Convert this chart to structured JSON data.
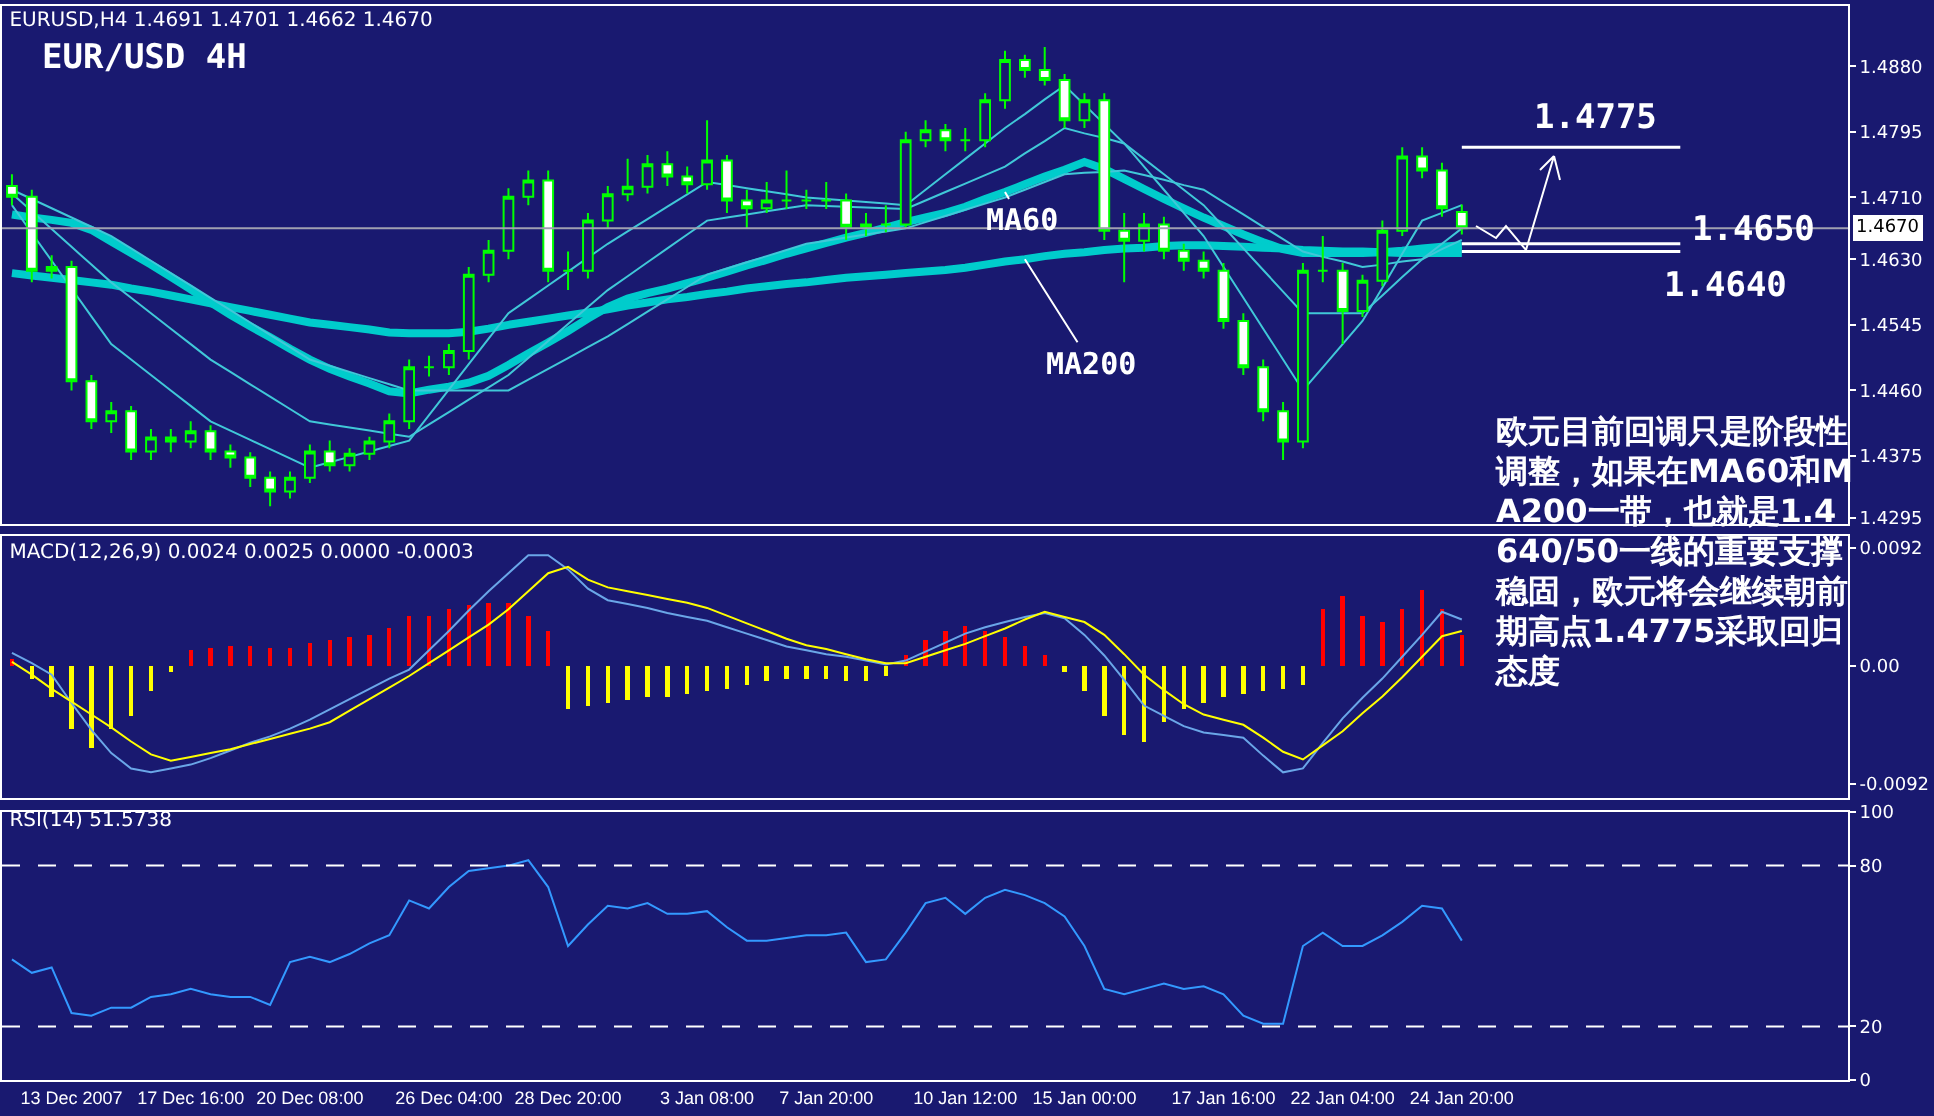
{
  "chart_data": [
    {
      "type": "candlestick",
      "title": "EURUSD,H4 1.4691 1.4701 1.4662 1.4670",
      "tick_labels": "y",
      "categories": [
        null,
        null,
        null,
        null,
        null,
        null,
        null,
        null,
        null,
        null,
        null,
        null,
        null,
        null,
        null,
        null,
        null,
        null,
        null,
        null,
        null,
        null,
        null,
        null,
        null,
        null,
        null,
        null,
        null,
        null,
        null,
        null,
        null,
        null,
        null,
        null,
        null,
        null,
        null,
        null,
        null,
        null,
        null,
        null,
        null,
        null,
        null,
        null,
        null,
        null,
        null,
        null,
        null,
        null,
        null,
        null,
        null,
        null,
        null,
        null,
        null,
        null,
        null,
        null,
        null,
        null,
        null,
        null,
        null,
        null,
        null,
        null,
        null,
        null
      ],
      "ohlc": [
        [
          1.4725,
          1.474,
          1.47,
          1.4711
        ],
        [
          1.4711,
          1.472,
          1.46,
          1.4615
        ],
        [
          1.4615,
          1.4635,
          1.4605,
          1.462
        ],
        [
          1.462,
          1.4628,
          1.446,
          1.4472
        ],
        [
          1.4472,
          1.448,
          1.441,
          1.442
        ],
        [
          1.442,
          1.4445,
          1.4405,
          1.4433
        ],
        [
          1.4433,
          1.444,
          1.437,
          1.4381
        ],
        [
          1.4381,
          1.441,
          1.437,
          1.4399
        ],
        [
          1.4399,
          1.441,
          1.438,
          1.4394
        ],
        [
          1.4394,
          1.442,
          1.4385,
          1.4407
        ],
        [
          1.4407,
          1.4415,
          1.437,
          1.4381
        ],
        [
          1.4381,
          1.439,
          1.436,
          1.4373
        ],
        [
          1.4373,
          1.438,
          1.4335,
          1.4347
        ],
        [
          1.4347,
          1.4355,
          1.431,
          1.4329
        ],
        [
          1.4329,
          1.4355,
          1.432,
          1.4347
        ],
        [
          1.4347,
          1.439,
          1.434,
          1.4381
        ],
        [
          1.4381,
          1.4395,
          1.4355,
          1.4363
        ],
        [
          1.4363,
          1.4385,
          1.4355,
          1.4378
        ],
        [
          1.4378,
          1.44,
          1.437,
          1.4394
        ],
        [
          1.4394,
          1.443,
          1.4385,
          1.442
        ],
        [
          1.442,
          1.45,
          1.441,
          1.449
        ],
        [
          1.449,
          1.4505,
          1.4478,
          1.449
        ],
        [
          1.449,
          1.452,
          1.448,
          1.4511
        ],
        [
          1.4511,
          1.462,
          1.45,
          1.461
        ],
        [
          1.461,
          1.4655,
          1.46,
          1.4641
        ],
        [
          1.4641,
          1.4722,
          1.463,
          1.4711
        ],
        [
          1.4711,
          1.4745,
          1.47,
          1.4732
        ],
        [
          1.4732,
          1.4745,
          1.46,
          1.4615
        ],
        [
          1.4615,
          1.464,
          1.459,
          1.4615
        ],
        [
          1.4615,
          1.469,
          1.4605,
          1.468
        ],
        [
          1.468,
          1.4725,
          1.467,
          1.4714
        ],
        [
          1.4714,
          1.476,
          1.4705,
          1.4724
        ],
        [
          1.4724,
          1.4765,
          1.4715,
          1.4753
        ],
        [
          1.4753,
          1.477,
          1.4725,
          1.4737
        ],
        [
          1.4737,
          1.475,
          1.4715,
          1.4727
        ],
        [
          1.4727,
          1.481,
          1.472,
          1.4758
        ],
        [
          1.4758,
          1.4765,
          1.469,
          1.4706
        ],
        [
          1.4706,
          1.472,
          1.467,
          1.4696
        ],
        [
          1.4696,
          1.473,
          1.469,
          1.4706
        ],
        [
          1.4706,
          1.4745,
          1.4695,
          1.4706
        ],
        [
          1.4706,
          1.472,
          1.4695,
          1.4706
        ],
        [
          1.4706,
          1.473,
          1.4695,
          1.4706
        ],
        [
          1.4706,
          1.4715,
          1.4655,
          1.4672
        ],
        [
          1.4672,
          1.469,
          1.466,
          1.4675
        ],
        [
          1.4675,
          1.47,
          1.4665,
          1.4675
        ],
        [
          1.4675,
          1.4795,
          1.467,
          1.4784
        ],
        [
          1.4784,
          1.481,
          1.4775,
          1.4797
        ],
        [
          1.4797,
          1.4805,
          1.477,
          1.4784
        ],
        [
          1.4784,
          1.48,
          1.477,
          1.4784
        ],
        [
          1.4784,
          1.4845,
          1.4775,
          1.4836
        ],
        [
          1.4836,
          1.49,
          1.4825,
          1.4888
        ],
        [
          1.4888,
          1.4895,
          1.4865,
          1.4875
        ],
        [
          1.4875,
          1.4905,
          1.4855,
          1.4862
        ],
        [
          1.4862,
          1.487,
          1.48,
          1.481
        ],
        [
          1.481,
          1.4845,
          1.48,
          1.4836
        ],
        [
          1.4836,
          1.4845,
          1.4655,
          1.4667
        ],
        [
          1.4667,
          1.469,
          1.46,
          1.4654
        ],
        [
          1.4654,
          1.469,
          1.464,
          1.4675
        ],
        [
          1.4675,
          1.4685,
          1.463,
          1.4641
        ],
        [
          1.4641,
          1.465,
          1.4615,
          1.4628
        ],
        [
          1.4628,
          1.464,
          1.4605,
          1.4615
        ],
        [
          1.4615,
          1.4625,
          1.454,
          1.455
        ],
        [
          1.455,
          1.456,
          1.448,
          1.449
        ],
        [
          1.449,
          1.45,
          1.442,
          1.4433
        ],
        [
          1.4433,
          1.4445,
          1.437,
          1.4394
        ],
        [
          1.4394,
          1.4625,
          1.4385,
          1.4615
        ],
        [
          1.4615,
          1.466,
          1.46,
          1.4615
        ],
        [
          1.4615,
          1.4625,
          1.452,
          1.4563
        ],
        [
          1.4563,
          1.461,
          1.4555,
          1.4602
        ],
        [
          1.4602,
          1.468,
          1.4595,
          1.4667
        ],
        [
          1.4667,
          1.4775,
          1.466,
          1.4763
        ],
        [
          1.4763,
          1.4775,
          1.4735,
          1.4745
        ],
        [
          1.4745,
          1.4755,
          1.4685,
          1.4696
        ],
        [
          1.4691,
          1.4701,
          1.4662,
          1.467
        ]
      ],
      "series": [
        {
          "type": "line",
          "name": "MA60",
          "color": "#00cccc",
          "values": [
            1.4688,
            1.4684,
            1.4681,
            1.4677,
            1.4668,
            1.4653,
            1.4638,
            1.4623,
            1.4607,
            1.4591,
            1.4574,
            1.4558,
            1.4543,
            1.4529,
            1.4514,
            1.45,
            1.4488,
            1.4478,
            1.4469,
            1.4459,
            1.4456,
            1.4461,
            1.4465,
            1.447,
            1.4479,
            1.4493,
            1.4508,
            1.4522,
            1.4537,
            1.4553,
            1.4568,
            1.4579,
            1.4586,
            1.4592,
            1.4599,
            1.4606,
            1.4614,
            1.4622,
            1.4629,
            1.4637,
            1.4644,
            1.4651,
            1.4658,
            1.4664,
            1.4671,
            1.4678,
            1.4684,
            1.469,
            1.4698,
            1.4708,
            1.4717,
            1.4727,
            1.4737,
            1.4746,
            1.4756,
            1.4747,
            1.4734,
            1.4721,
            1.4708,
            1.4696,
            1.4684,
            1.4673,
            1.4662,
            1.4652,
            1.4643,
            1.4638,
            1.4638,
            1.4638,
            1.4638,
            1.4639,
            1.4641,
            1.4644,
            1.4646,
            1.4648
          ]
        },
        {
          "type": "line",
          "name": "MA200",
          "color": "#00cccc",
          "values": [
            1.4612,
            1.4609,
            1.4606,
            1.4603,
            1.46,
            1.4597,
            1.4592,
            1.4588,
            1.4583,
            1.4578,
            1.4573,
            1.4568,
            1.4563,
            1.4558,
            1.4553,
            1.4548,
            1.4545,
            1.4542,
            1.4539,
            1.4535,
            1.4534,
            1.4534,
            1.4534,
            1.4536,
            1.454,
            1.4545,
            1.4549,
            1.4553,
            1.4557,
            1.4561,
            1.4565,
            1.457,
            1.4574,
            1.4578,
            1.4581,
            1.4585,
            1.4588,
            1.4592,
            1.4595,
            1.4598,
            1.46,
            1.4603,
            1.4606,
            1.4608,
            1.461,
            1.4612,
            1.4614,
            1.4616,
            1.4619,
            1.4623,
            1.4627,
            1.463,
            1.4634,
            1.4637,
            1.4639,
            1.4642,
            1.4644,
            1.4645,
            1.4647,
            1.4648,
            1.4648,
            1.4647,
            1.4646,
            1.4645,
            1.4644,
            1.4642,
            1.4641,
            1.464,
            1.464,
            1.4639,
            1.4638,
            1.4638,
            1.4638,
            1.4638
          ]
        },
        {
          "type": "line",
          "color": "#40c8d8",
          "values": [
            1.47,
            1.4664,
            1.4628,
            1.4592,
            1.4556,
            1.452,
            1.45,
            1.448,
            1.446,
            1.444,
            1.442,
            1.4408,
            1.4396,
            1.4384,
            1.4372,
            1.436,
            1.4367,
            1.4374,
            1.4381,
            1.4388,
            1.4395,
            1.4428,
            1.4461,
            1.4494,
            1.4527,
            1.456,
            1.4578,
            1.4596,
            1.4614,
            1.4632,
            1.465,
            1.4666,
            1.4682,
            1.4698,
            1.4714,
            1.473,
            1.4726,
            1.4722,
            1.4718,
            1.4714,
            1.471,
            1.4708,
            1.4706,
            1.4704,
            1.4702,
            1.47,
            1.472,
            1.474,
            1.476,
            1.478,
            1.48,
            1.4818,
            1.4837,
            1.4855,
            1.483,
            1.4805,
            1.478,
            1.475,
            1.472,
            1.469,
            1.466,
            1.462,
            1.458,
            1.454,
            1.45,
            1.446,
            1.449,
            1.452,
            1.455,
            1.4593,
            1.4637,
            1.468,
            1.469,
            1.47
          ]
        },
        {
          "type": "line",
          "color": "#40c8d8",
          "values": [
            1.4715,
            1.4692,
            1.4669,
            1.4646,
            1.4623,
            1.46,
            1.458,
            1.456,
            1.454,
            1.452,
            1.45,
            1.4484,
            1.4468,
            1.4452,
            1.4436,
            1.442,
            1.4416,
            1.4412,
            1.4408,
            1.4404,
            1.44,
            1.4416,
            1.4432,
            1.4448,
            1.4464,
            1.448,
            1.4502,
            1.4524,
            1.4546,
            1.4568,
            1.459,
            1.4608,
            1.4626,
            1.4644,
            1.4662,
            1.468,
            1.4684,
            1.4688,
            1.4692,
            1.4696,
            1.47,
            1.4699,
            1.4698,
            1.4697,
            1.4696,
            1.4695,
            1.4706,
            1.4717,
            1.4728,
            1.4739,
            1.475,
            1.4767,
            1.4783,
            1.48,
            1.4793,
            1.4787,
            1.478,
            1.476,
            1.474,
            1.472,
            1.47,
            1.4672,
            1.4644,
            1.4616,
            1.4588,
            1.456,
            1.456,
            1.456,
            1.456,
            1.4583,
            1.4607,
            1.463,
            1.465,
            1.467
          ]
        },
        {
          "type": "line",
          "color": "#40c8d8",
          "values": [
            1.472,
            1.4708,
            1.4696,
            1.4684,
            1.4672,
            1.466,
            1.4644,
            1.4628,
            1.4612,
            1.4596,
            1.458,
            1.4564,
            1.4548,
            1.4532,
            1.4516,
            1.45,
            1.4492,
            1.4484,
            1.4476,
            1.4468,
            1.446,
            1.446,
            1.446,
            1.446,
            1.446,
            1.446,
            1.4474,
            1.4488,
            1.4502,
            1.4516,
            1.453,
            1.4546,
            1.4562,
            1.4578,
            1.4594,
            1.461,
            1.4618,
            1.4626,
            1.4634,
            1.4642,
            1.465,
            1.4654,
            1.4658,
            1.4662,
            1.4666,
            1.467,
            1.4678,
            1.4686,
            1.4694,
            1.4702,
            1.471,
            1.472,
            1.473,
            1.474,
            1.4742,
            1.4743,
            1.4745,
            1.4739,
            1.4733,
            1.4726,
            1.472,
            1.4704,
            1.4688,
            1.4672,
            1.4656,
            1.464,
            1.4633,
            1.4627,
            1.462,
            1.4623,
            1.4627,
            1.463,
            1.4643,
            1.4655
          ]
        }
      ],
      "ylim": [
        1.4287,
        1.4958
      ],
      "yticks": [
        {
          "value": 1.488,
          "label": "1.4880"
        },
        1.4795,
        {
          "value": 1.471,
          "label": "1.4710"
        },
        {
          "value": 1.463,
          "label": "1.4630"
        },
        1.4545,
        {
          "value": 1.446,
          "label": "1.4460"
        },
        1.4375,
        1.4295
      ],
      "ref_lines": [
        {
          "axis": "y",
          "value": 1.467,
          "label": "1.4670",
          "color": "#a0a0b0"
        },
        {
          "axis": "y",
          "value": 1.4775,
          "label": "1.4775",
          "color": "#ffffff"
        },
        {
          "axis": "y",
          "value": 1.465,
          "label": "1.4650",
          "color": "#ffffff"
        },
        {
          "axis": "y",
          "value": 1.464,
          "label": "1.4640",
          "color": "#ffffff"
        }
      ],
      "annotations": [
        "EUR/USD 4H",
        "欧元目前回调只是阶段性调整，如果在MA60和MA200一带，也就是1.4640/50一线的重要支撑稳固，欧元将会继续朝前期高点1.4775采取回归态度"
      ]
    },
    {
      "type": "bar",
      "title": "MACD(12,26,9) 0.0024 0.0025 0.0000 -0.0003",
      "tick_labels": "y",
      "categories": [
        null,
        null,
        null,
        null,
        null,
        null,
        null,
        null,
        null,
        null,
        null,
        null,
        null,
        null,
        null,
        null,
        null,
        null,
        null,
        null,
        null,
        null,
        null,
        null,
        null,
        null,
        null,
        null,
        null,
        null,
        null,
        null,
        null,
        null,
        null,
        null,
        null,
        null,
        null,
        null,
        null,
        null,
        null,
        null,
        null,
        null,
        null,
        null,
        null,
        null,
        null,
        null,
        null,
        null,
        null,
        null,
        null,
        null,
        null,
        null,
        null,
        null,
        null,
        null,
        null,
        null,
        null,
        null,
        null,
        null,
        null,
        null,
        null,
        null
      ],
      "ylim": [
        -0.0103,
        0.0101
      ],
      "yticks": [
        0.0092,
        {
          "value": 0,
          "label": "0.00"
        },
        -0.0092
      ],
      "series": [
        {
          "type": "bar",
          "values": [
            0.0005,
            -0.001,
            -0.0024,
            -0.0049,
            -0.0064,
            -0.0049,
            -0.0039,
            -0.002,
            -0.0005,
            0.0012,
            0.0014,
            0.0015,
            0.0015,
            0.0014,
            0.0014,
            0.0018,
            0.002,
            0.0022,
            0.0024,
            0.0029,
            0.0039,
            0.0039,
            0.0044,
            0.0047,
            0.0049,
            0.0049,
            0.0039,
            0.0027,
            -0.0034,
            -0.0031,
            -0.0029,
            -0.0027,
            -0.0024,
            -0.0024,
            -0.0022,
            -0.002,
            -0.0018,
            -0.0015,
            -0.0012,
            -0.001,
            -0.001,
            -0.001,
            -0.0012,
            -0.0012,
            -0.0008,
            0.0008,
            0.002,
            0.0027,
            0.0031,
            0.0027,
            0.0022,
            0.0015,
            0.0008,
            -0.0005,
            -0.002,
            -0.0039,
            -0.0054,
            -0.0059,
            -0.0044,
            -0.0034,
            -0.0029,
            -0.0024,
            -0.0022,
            -0.002,
            -0.0018,
            -0.0015,
            0.0044,
            0.0054,
            0.0039,
            0.0034,
            0.0044,
            0.0059,
            0.0044,
            0.0024
          ],
          "colors": [
            "#ff0000",
            "#ffff00",
            "#ffff00",
            "#ffff00",
            "#ffff00",
            "#ffff00",
            "#ffff00",
            "#ffff00",
            "#ffff00",
            "#ff0000",
            "#ff0000",
            "#ff0000",
            "#ff0000",
            "#ff0000",
            "#ff0000",
            "#ff0000",
            "#ff0000",
            "#ff0000",
            "#ff0000",
            "#ff0000",
            "#ff0000",
            "#ff0000",
            "#ff0000",
            "#ff0000",
            "#ff0000",
            "#ff0000",
            "#ff0000",
            "#ff0000",
            "#ffff00",
            "#ffff00",
            "#ffff00",
            "#ffff00",
            "#ffff00",
            "#ffff00",
            "#ffff00",
            "#ffff00",
            "#ffff00",
            "#ffff00",
            "#ffff00",
            "#ffff00",
            "#ffff00",
            "#ffff00",
            "#ffff00",
            "#ffff00",
            "#ffff00",
            "#ff0000",
            "#ff0000",
            "#ff0000",
            "#ff0000",
            "#ff0000",
            "#ff0000",
            "#ff0000",
            "#ff0000",
            "#ffff00",
            "#ffff00",
            "#ffff00",
            "#ffff00",
            "#ffff00",
            "#ffff00",
            "#ffff00",
            "#ffff00",
            "#ffff00",
            "#ffff00",
            "#ffff00",
            "#ffff00",
            "#ffff00",
            "#ff0000",
            "#ff0000",
            "#ff0000",
            "#ff0000",
            "#ff0000",
            "#ff0000",
            "#ff0000",
            "#ff0000"
          ]
        },
        {
          "type": "line",
          "color": "#6aa6e8",
          "values": [
            0.001,
            0.0002,
            -0.0007,
            -0.0029,
            -0.005,
            -0.0068,
            -0.008,
            -0.0083,
            -0.008,
            -0.0077,
            -0.0072,
            -0.0066,
            -0.006,
            -0.0055,
            -0.0049,
            -0.0042,
            -0.0034,
            -0.0026,
            -0.0018,
            -0.001,
            -0.0003,
            0.0012,
            0.0027,
            0.0043,
            0.0058,
            0.0072,
            0.0086,
            0.0086,
            0.0075,
            0.006,
            0.0051,
            0.0048,
            0.0045,
            0.0041,
            0.0038,
            0.0035,
            0.003,
            0.0025,
            0.002,
            0.0015,
            0.0012,
            0.0009,
            0.0007,
            0.0004,
            0.0001,
            0.0004,
            0.0011,
            0.0018,
            0.0025,
            0.003,
            0.0034,
            0.0038,
            0.0041,
            0.0037,
            0.0024,
            0.0008,
            -0.0011,
            -0.0031,
            -0.0039,
            -0.0047,
            -0.0052,
            -0.0054,
            -0.0056,
            -0.007,
            -0.0083,
            -0.008,
            -0.006,
            -0.0041,
            -0.0025,
            -0.001,
            0.0007,
            0.0024,
            0.0042,
            0.0036
          ]
        },
        {
          "type": "line",
          "color": "#ffff00",
          "values": [
            0.0003,
            -0.0007,
            -0.0018,
            -0.0028,
            -0.0038,
            -0.0048,
            -0.0059,
            -0.0069,
            -0.0074,
            -0.0071,
            -0.0068,
            -0.0065,
            -0.0061,
            -0.0057,
            -0.0053,
            -0.0049,
            -0.0044,
            -0.0035,
            -0.0026,
            -0.0017,
            -0.0008,
            0.0002,
            0.0012,
            0.0022,
            0.0032,
            0.0044,
            0.0058,
            0.0072,
            0.0077,
            0.0067,
            0.0061,
            0.0058,
            0.0055,
            0.0052,
            0.0049,
            0.0045,
            0.0039,
            0.0033,
            0.0027,
            0.0021,
            0.0016,
            0.0013,
            0.0009,
            0.0005,
            0.0002,
            0.0002,
            0.0007,
            0.0012,
            0.0017,
            0.0023,
            0.0029,
            0.0036,
            0.0042,
            0.0038,
            0.0034,
            0.0024,
            0.0009,
            -0.0007,
            -0.0019,
            -0.003,
            -0.0038,
            -0.0042,
            -0.0046,
            -0.0056,
            -0.0067,
            -0.0073,
            -0.0062,
            -0.0051,
            -0.0037,
            -0.0024,
            -0.0009,
            0.0007,
            0.0023,
            0.0027
          ]
        }
      ]
    },
    {
      "type": "line",
      "title": "RSI(14) 51.5738",
      "categories": [
        null,
        null,
        null,
        "13 Dec 2007",
        null,
        null,
        null,
        null,
        null,
        "17 Dec 16:00",
        null,
        null,
        null,
        null,
        null,
        "20 Dec 08:00",
        null,
        null,
        null,
        null,
        null,
        null,
        "26 Dec 04:00",
        null,
        null,
        null,
        null,
        null,
        "28 Dec 20:00",
        null,
        null,
        null,
        null,
        null,
        null,
        "3 Jan 08:00",
        null,
        null,
        null,
        null,
        null,
        "7 Jan 20:00",
        null,
        null,
        null,
        null,
        null,
        null,
        "10 Jan 12:00",
        null,
        null,
        null,
        null,
        null,
        "15 Jan 00:00",
        null,
        null,
        null,
        null,
        null,
        null,
        "17 Jan 16:00",
        null,
        null,
        null,
        null,
        null,
        "22 Jan 04:00",
        null,
        null,
        null,
        null,
        null,
        "24 Jan 20:00"
      ],
      "ylim": [
        0,
        100
      ],
      "yticks": [
        0,
        20,
        80,
        100
      ],
      "ref_lines": [
        {
          "axis": "y",
          "value": 80,
          "color": "#ffffff",
          "line_style": "dashed"
        },
        {
          "axis": "y",
          "value": 20,
          "color": "#ffffff",
          "line_style": "dashed"
        }
      ],
      "series": [
        {
          "color": "#3399ff",
          "values": [
            45,
            40,
            42,
            25,
            24,
            27,
            27,
            31,
            32,
            34,
            32,
            31,
            31,
            28,
            44,
            46,
            44,
            47,
            51,
            54,
            67,
            64,
            72,
            78,
            79,
            80,
            82,
            72,
            50,
            58,
            65,
            64,
            66,
            62,
            62,
            63,
            57,
            52,
            52,
            53,
            54,
            54,
            55,
            44,
            45,
            55,
            66,
            68,
            62,
            68,
            71,
            69,
            66,
            61,
            50,
            34,
            32,
            34,
            36,
            34,
            35,
            32,
            24,
            21,
            21,
            50,
            55,
            50,
            50,
            54,
            59,
            65,
            64,
            52
          ]
        }
      ]
    }
  ]
}
